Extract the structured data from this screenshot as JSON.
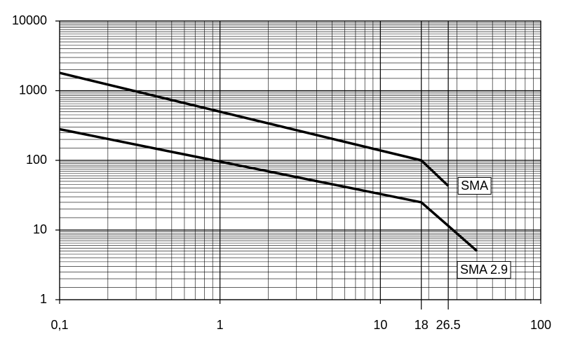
{
  "chart_data": {
    "type": "line",
    "log_x": true,
    "log_y": true,
    "grid": true,
    "xlim": [
      0.1,
      100
    ],
    "ylim": [
      1,
      10000
    ],
    "xticks": [
      {
        "value": 0.1,
        "label": "0,1"
      },
      1,
      10,
      18,
      26.5,
      100
    ],
    "yticks": [
      1,
      10,
      100,
      1000,
      10000
    ],
    "series": [
      {
        "name": "SMA",
        "color": "#000000",
        "x": [
          0.1,
          18,
          26.5
        ],
        "values": [
          1800,
          100,
          43
        ]
      },
      {
        "name": "SMA 2.9",
        "color": "#000000",
        "x": [
          0.1,
          18,
          40
        ],
        "values": [
          280,
          25,
          5
        ]
      }
    ]
  }
}
